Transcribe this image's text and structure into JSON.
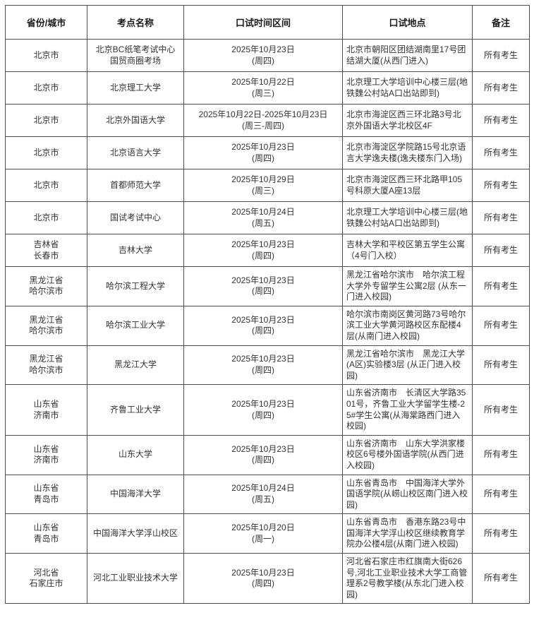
{
  "table": {
    "columns": [
      {
        "key": "region",
        "label": "省份/城市"
      },
      {
        "key": "center",
        "label": "考点名称"
      },
      {
        "key": "time",
        "label": "口试时间区间"
      },
      {
        "key": "location",
        "label": "口试地点"
      },
      {
        "key": "note",
        "label": "备注"
      }
    ],
    "rows": [
      {
        "region": "北京市",
        "center": "北京BC纸笔考试中心\n国贸商圈考场",
        "time": "2025年10月23日\n(周四)",
        "location": "北京市朝阳区团结湖南里17号团结湖大厦(从西门进入)",
        "note": "所有考生"
      },
      {
        "region": "北京市",
        "center": "北京理工大学",
        "time": "2025年10月22日\n(周三)",
        "location": "北京理工大学培训中心楼三层(地铁魏公村站A口出站即到)",
        "note": "所有考生"
      },
      {
        "region": "北京市",
        "center": "北京外国语大学",
        "time": "2025年10月22日-2025年10月23日\n(周三-周四)",
        "location": "北京市海淀区西三环北路3号北京外国语大学北校区4F",
        "note": "所有考生"
      },
      {
        "region": "北京市",
        "center": "北京语言大学",
        "time": "2025年10月23日\n(周四)",
        "location": "北京市海淀区学院路15号北京语言大学逸夫楼(逸夫楼东门入场)",
        "note": "所有考生"
      },
      {
        "region": "北京市",
        "center": "首都师范大学",
        "time": "2025年10月29日\n(周三)",
        "location": "北京市海淀区西三环北路甲105号科原大厦A座13层",
        "note": "所有考生"
      },
      {
        "region": "北京市",
        "center": "国试考试中心",
        "time": "2025年10月24日\n(周五)",
        "location": "北京理工大学培训中心楼三层(地铁魏公村站A口出站即到)",
        "note": "所有考生"
      },
      {
        "region": "吉林省\n长春市",
        "center": "吉林大学",
        "time": "2025年10月23日\n(周四)",
        "location": "吉林大学和平校区第五学生公寓 （4号门入校）",
        "note": "所有考生"
      },
      {
        "region": "黑龙江省\n哈尔滨市",
        "center": "哈尔滨工程大学",
        "time": "2025年10月23日\n(周四)",
        "location": "黑龙江省哈尔滨市　哈尔滨工程大学外专留学生公寓2层 (从东一门进入校园)",
        "note": "所有考生"
      },
      {
        "region": "黑龙江省\n哈尔滨市",
        "center": "哈尔滨工业大学",
        "time": "2025年10月23日\n(周四)",
        "location": "哈尔滨市南岗区黄河路73号哈尔滨工业大学黄河路校区东配楼4层(从南门进入校园)",
        "note": "所有考生"
      },
      {
        "region": "黑龙江省\n哈尔滨市",
        "center": "黑龙江大学",
        "time": "2025年10月23日\n(周四)",
        "location": "黑龙江省哈尔滨市　黑龙江大学(A区)实验楼3层 (从正门进入校园)",
        "note": "所有考生"
      },
      {
        "region": "山东省\n济南市",
        "center": "齐鲁工业大学",
        "time": "2025年10月23日\n(周四)",
        "location": "山东省济南市　长清区大学路3501号，齐鲁工业大学留学生楼-25#学生公寓(从海棠路西门进入校园)",
        "note": "所有考生"
      },
      {
        "region": "山东省\n济南市",
        "center": "山东大学",
        "time": "2025年10月23日\n(周四)",
        "location": "山东省济南市　山东大学洪家楼校区6号楼外国语学院(从西门进入校园)",
        "note": "所有考生"
      },
      {
        "region": "山东省\n青岛市",
        "center": "中国海洋大学",
        "time": "2025年10月24日\n(周五)",
        "location": "山东省青岛市　中国海洋大学外国语学院(从崂山校区南门进入校园)",
        "note": "所有考生"
      },
      {
        "region": "山东省\n青岛市",
        "center": "中国海洋大学浮山校区",
        "time": "2025年10月20日\n(周一)",
        "location": "山东省青岛市　香港东路23号中国海洋大学浮山校区继续教育学院办公楼4层(从南门进入校园)",
        "note": "所有考生"
      },
      {
        "region": "河北省\n石家庄市",
        "center": "河北工业职业技术大学",
        "time": "2025年10月23日\n(周四)",
        "location": "河北省石家庄市红旗南大街626号,河北工业职业技术大学工商管理系2号教学楼(从东北门进入校园)",
        "note": "所有考生"
      }
    ]
  }
}
